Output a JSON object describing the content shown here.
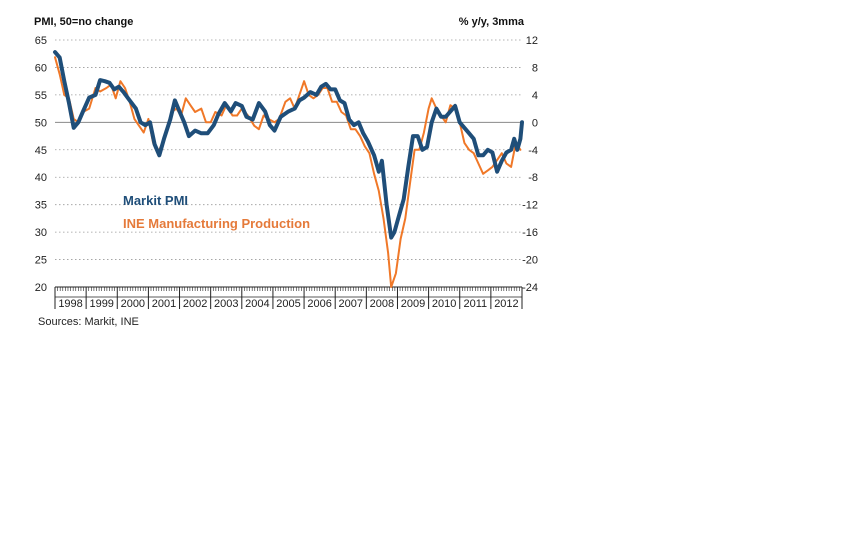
{
  "chart_data": {
    "type": "line",
    "left_axis_label": "PMI, 50=no change",
    "right_axis_label": "% y/y, 3mma",
    "left_ylim": [
      20,
      65
    ],
    "right_ylim": [
      -24,
      12
    ],
    "left_ticks": [
      "65",
      "60",
      "55",
      "50",
      "45",
      "40",
      "35",
      "30",
      "25",
      "20"
    ],
    "right_ticks": [
      "12",
      "8",
      "4",
      "0",
      "-4",
      "-8",
      "-12",
      "-16",
      "-20",
      "-24"
    ],
    "x_range": [
      1998.0,
      2013.0
    ],
    "years": [
      "1998",
      "1999",
      "2000",
      "2001",
      "2002",
      "2003",
      "2004",
      "2005",
      "2006",
      "2007",
      "2008",
      "2009",
      "2010",
      "2011",
      "2012"
    ],
    "grid": "dotted horizontal",
    "reference_line": {
      "axis": "left",
      "value": 50
    },
    "source": "Sources: Markit, INE",
    "series": [
      {
        "name": "Markit PMI",
        "axis": "left",
        "color": "#1f4e79",
        "legend_color": "#1f4e79",
        "points": [
          [
            1998.0,
            62.8
          ],
          [
            1998.15,
            61.8
          ],
          [
            1998.3,
            57.5
          ],
          [
            1998.45,
            53.5
          ],
          [
            1998.6,
            49
          ],
          [
            1998.75,
            50
          ],
          [
            1998.9,
            52
          ],
          [
            1999.1,
            54.5
          ],
          [
            1999.3,
            55
          ],
          [
            1999.45,
            57.7
          ],
          [
            1999.6,
            57.5
          ],
          [
            1999.75,
            57.2
          ],
          [
            1999.9,
            56
          ],
          [
            2000.05,
            56.5
          ],
          [
            2000.2,
            55.5
          ],
          [
            2000.4,
            54
          ],
          [
            2000.6,
            52.5
          ],
          [
            2000.75,
            50
          ],
          [
            2000.9,
            49.5
          ],
          [
            2001.05,
            50
          ],
          [
            2001.2,
            46
          ],
          [
            2001.35,
            44
          ],
          [
            2001.5,
            47
          ],
          [
            2001.7,
            50.5
          ],
          [
            2001.85,
            54
          ],
          [
            2002.0,
            52
          ],
          [
            2002.15,
            50
          ],
          [
            2002.3,
            47.5
          ],
          [
            2002.5,
            48.5
          ],
          [
            2002.7,
            48
          ],
          [
            2002.9,
            48
          ],
          [
            2003.1,
            49.5
          ],
          [
            2003.25,
            51.5
          ],
          [
            2003.45,
            53.5
          ],
          [
            2003.65,
            52
          ],
          [
            2003.8,
            53.5
          ],
          [
            2004.0,
            53
          ],
          [
            2004.15,
            51
          ],
          [
            2004.35,
            50.5
          ],
          [
            2004.55,
            53.5
          ],
          [
            2004.75,
            52
          ],
          [
            2004.9,
            49.5
          ],
          [
            2005.05,
            48.5
          ],
          [
            2005.25,
            51
          ],
          [
            2005.5,
            52
          ],
          [
            2005.7,
            52.5
          ],
          [
            2005.85,
            54
          ],
          [
            2006.0,
            54.5
          ],
          [
            2006.2,
            55.5
          ],
          [
            2006.4,
            55
          ],
          [
            2006.55,
            56.5
          ],
          [
            2006.7,
            57
          ],
          [
            2006.85,
            56
          ],
          [
            2007.0,
            56
          ],
          [
            2007.15,
            54
          ],
          [
            2007.3,
            53.5
          ],
          [
            2007.45,
            50.5
          ],
          [
            2007.6,
            49.5
          ],
          [
            2007.75,
            50
          ],
          [
            2007.9,
            48
          ],
          [
            2008.05,
            46.5
          ],
          [
            2008.25,
            44
          ],
          [
            2008.4,
            41
          ],
          [
            2008.5,
            43
          ],
          [
            2008.65,
            35
          ],
          [
            2008.8,
            29
          ],
          [
            2008.9,
            30
          ],
          [
            2009.05,
            33
          ],
          [
            2009.2,
            36
          ],
          [
            2009.35,
            42
          ],
          [
            2009.5,
            47.5
          ],
          [
            2009.65,
            47.5
          ],
          [
            2009.8,
            45
          ],
          [
            2009.95,
            45.5
          ],
          [
            2010.1,
            50
          ],
          [
            2010.25,
            52.5
          ],
          [
            2010.4,
            51
          ],
          [
            2010.55,
            51
          ],
          [
            2010.7,
            52
          ],
          [
            2010.85,
            53
          ],
          [
            2011.0,
            50
          ],
          [
            2011.15,
            49
          ],
          [
            2011.3,
            48
          ],
          [
            2011.45,
            47
          ],
          [
            2011.6,
            44
          ],
          [
            2011.75,
            44
          ],
          [
            2011.9,
            45
          ],
          [
            2012.05,
            44.5
          ],
          [
            2012.2,
            41
          ],
          [
            2012.35,
            43
          ],
          [
            2012.5,
            44.5
          ],
          [
            2012.65,
            45
          ],
          [
            2012.75,
            47
          ],
          [
            2012.85,
            45
          ],
          [
            2012.95,
            47
          ],
          [
            2013.0,
            50
          ]
        ]
      },
      {
        "name": "INE Manufacturing Production",
        "axis": "right",
        "color": "#f07828",
        "legend_color": "#e57a3a",
        "points": [
          [
            1998.0,
            9.5
          ],
          [
            1998.15,
            7
          ],
          [
            1998.3,
            4
          ],
          [
            1998.45,
            3.5
          ],
          [
            1998.6,
            0.5
          ],
          [
            1998.75,
            0
          ],
          [
            1998.9,
            1.5
          ],
          [
            1999.1,
            2
          ],
          [
            1999.3,
            5
          ],
          [
            1999.45,
            4.5
          ],
          [
            1999.65,
            5
          ],
          [
            1999.8,
            5.5
          ],
          [
            1999.95,
            3.5
          ],
          [
            2000.1,
            6
          ],
          [
            2000.25,
            5
          ],
          [
            2000.4,
            3
          ],
          [
            2000.55,
            0.5
          ],
          [
            2000.7,
            -0.5
          ],
          [
            2000.85,
            -1.5
          ],
          [
            2001.0,
            0.5
          ],
          [
            2001.15,
            -3
          ],
          [
            2001.3,
            -4.5
          ],
          [
            2001.45,
            -3
          ],
          [
            2001.6,
            -1
          ],
          [
            2001.75,
            1.5
          ],
          [
            2001.9,
            2
          ],
          [
            2002.05,
            1
          ],
          [
            2002.2,
            3.5
          ],
          [
            2002.35,
            2.5
          ],
          [
            2002.5,
            1.5
          ],
          [
            2002.7,
            2
          ],
          [
            2002.85,
            0
          ],
          [
            2003.0,
            0
          ],
          [
            2003.15,
            1.5
          ],
          [
            2003.35,
            1
          ],
          [
            2003.5,
            2.5
          ],
          [
            2003.7,
            1
          ],
          [
            2003.85,
            1
          ],
          [
            2004.0,
            2
          ],
          [
            2004.2,
            1
          ],
          [
            2004.4,
            -0.5
          ],
          [
            2004.55,
            -1
          ],
          [
            2004.7,
            1
          ],
          [
            2004.85,
            0.5
          ],
          [
            2005.05,
            0
          ],
          [
            2005.2,
            0.5
          ],
          [
            2005.4,
            3
          ],
          [
            2005.55,
            3.5
          ],
          [
            2005.7,
            2
          ],
          [
            2005.85,
            4
          ],
          [
            2006.0,
            6
          ],
          [
            2006.15,
            4
          ],
          [
            2006.3,
            3.5
          ],
          [
            2006.45,
            4
          ],
          [
            2006.6,
            5
          ],
          [
            2006.75,
            5
          ],
          [
            2006.9,
            3
          ],
          [
            2007.05,
            3
          ],
          [
            2007.2,
            1.5
          ],
          [
            2007.35,
            1
          ],
          [
            2007.5,
            -1
          ],
          [
            2007.65,
            -1
          ],
          [
            2007.8,
            -2
          ],
          [
            2007.95,
            -3.5
          ],
          [
            2008.1,
            -4.5
          ],
          [
            2008.25,
            -7.5
          ],
          [
            2008.4,
            -10
          ],
          [
            2008.55,
            -14
          ],
          [
            2008.7,
            -19
          ],
          [
            2008.8,
            -24
          ],
          [
            2008.95,
            -22
          ],
          [
            2009.1,
            -17
          ],
          [
            2009.25,
            -14
          ],
          [
            2009.4,
            -9
          ],
          [
            2009.55,
            -4
          ],
          [
            2009.7,
            -4
          ],
          [
            2009.85,
            -1.5
          ],
          [
            2010.0,
            2
          ],
          [
            2010.1,
            3.5
          ],
          [
            2010.25,
            2
          ],
          [
            2010.4,
            1
          ],
          [
            2010.55,
            0
          ],
          [
            2010.7,
            2.5
          ],
          [
            2010.85,
            2
          ],
          [
            2011.0,
            0
          ],
          [
            2011.15,
            -3
          ],
          [
            2011.3,
            -4
          ],
          [
            2011.45,
            -4.5
          ],
          [
            2011.6,
            -6
          ],
          [
            2011.75,
            -7.5
          ],
          [
            2011.9,
            -7
          ],
          [
            2012.05,
            -6.5
          ],
          [
            2012.2,
            -5.5
          ],
          [
            2012.35,
            -4.5
          ],
          [
            2012.5,
            -6
          ],
          [
            2012.65,
            -6.5
          ],
          [
            2012.8,
            -3
          ],
          [
            2012.95,
            -4
          ]
        ]
      }
    ]
  }
}
